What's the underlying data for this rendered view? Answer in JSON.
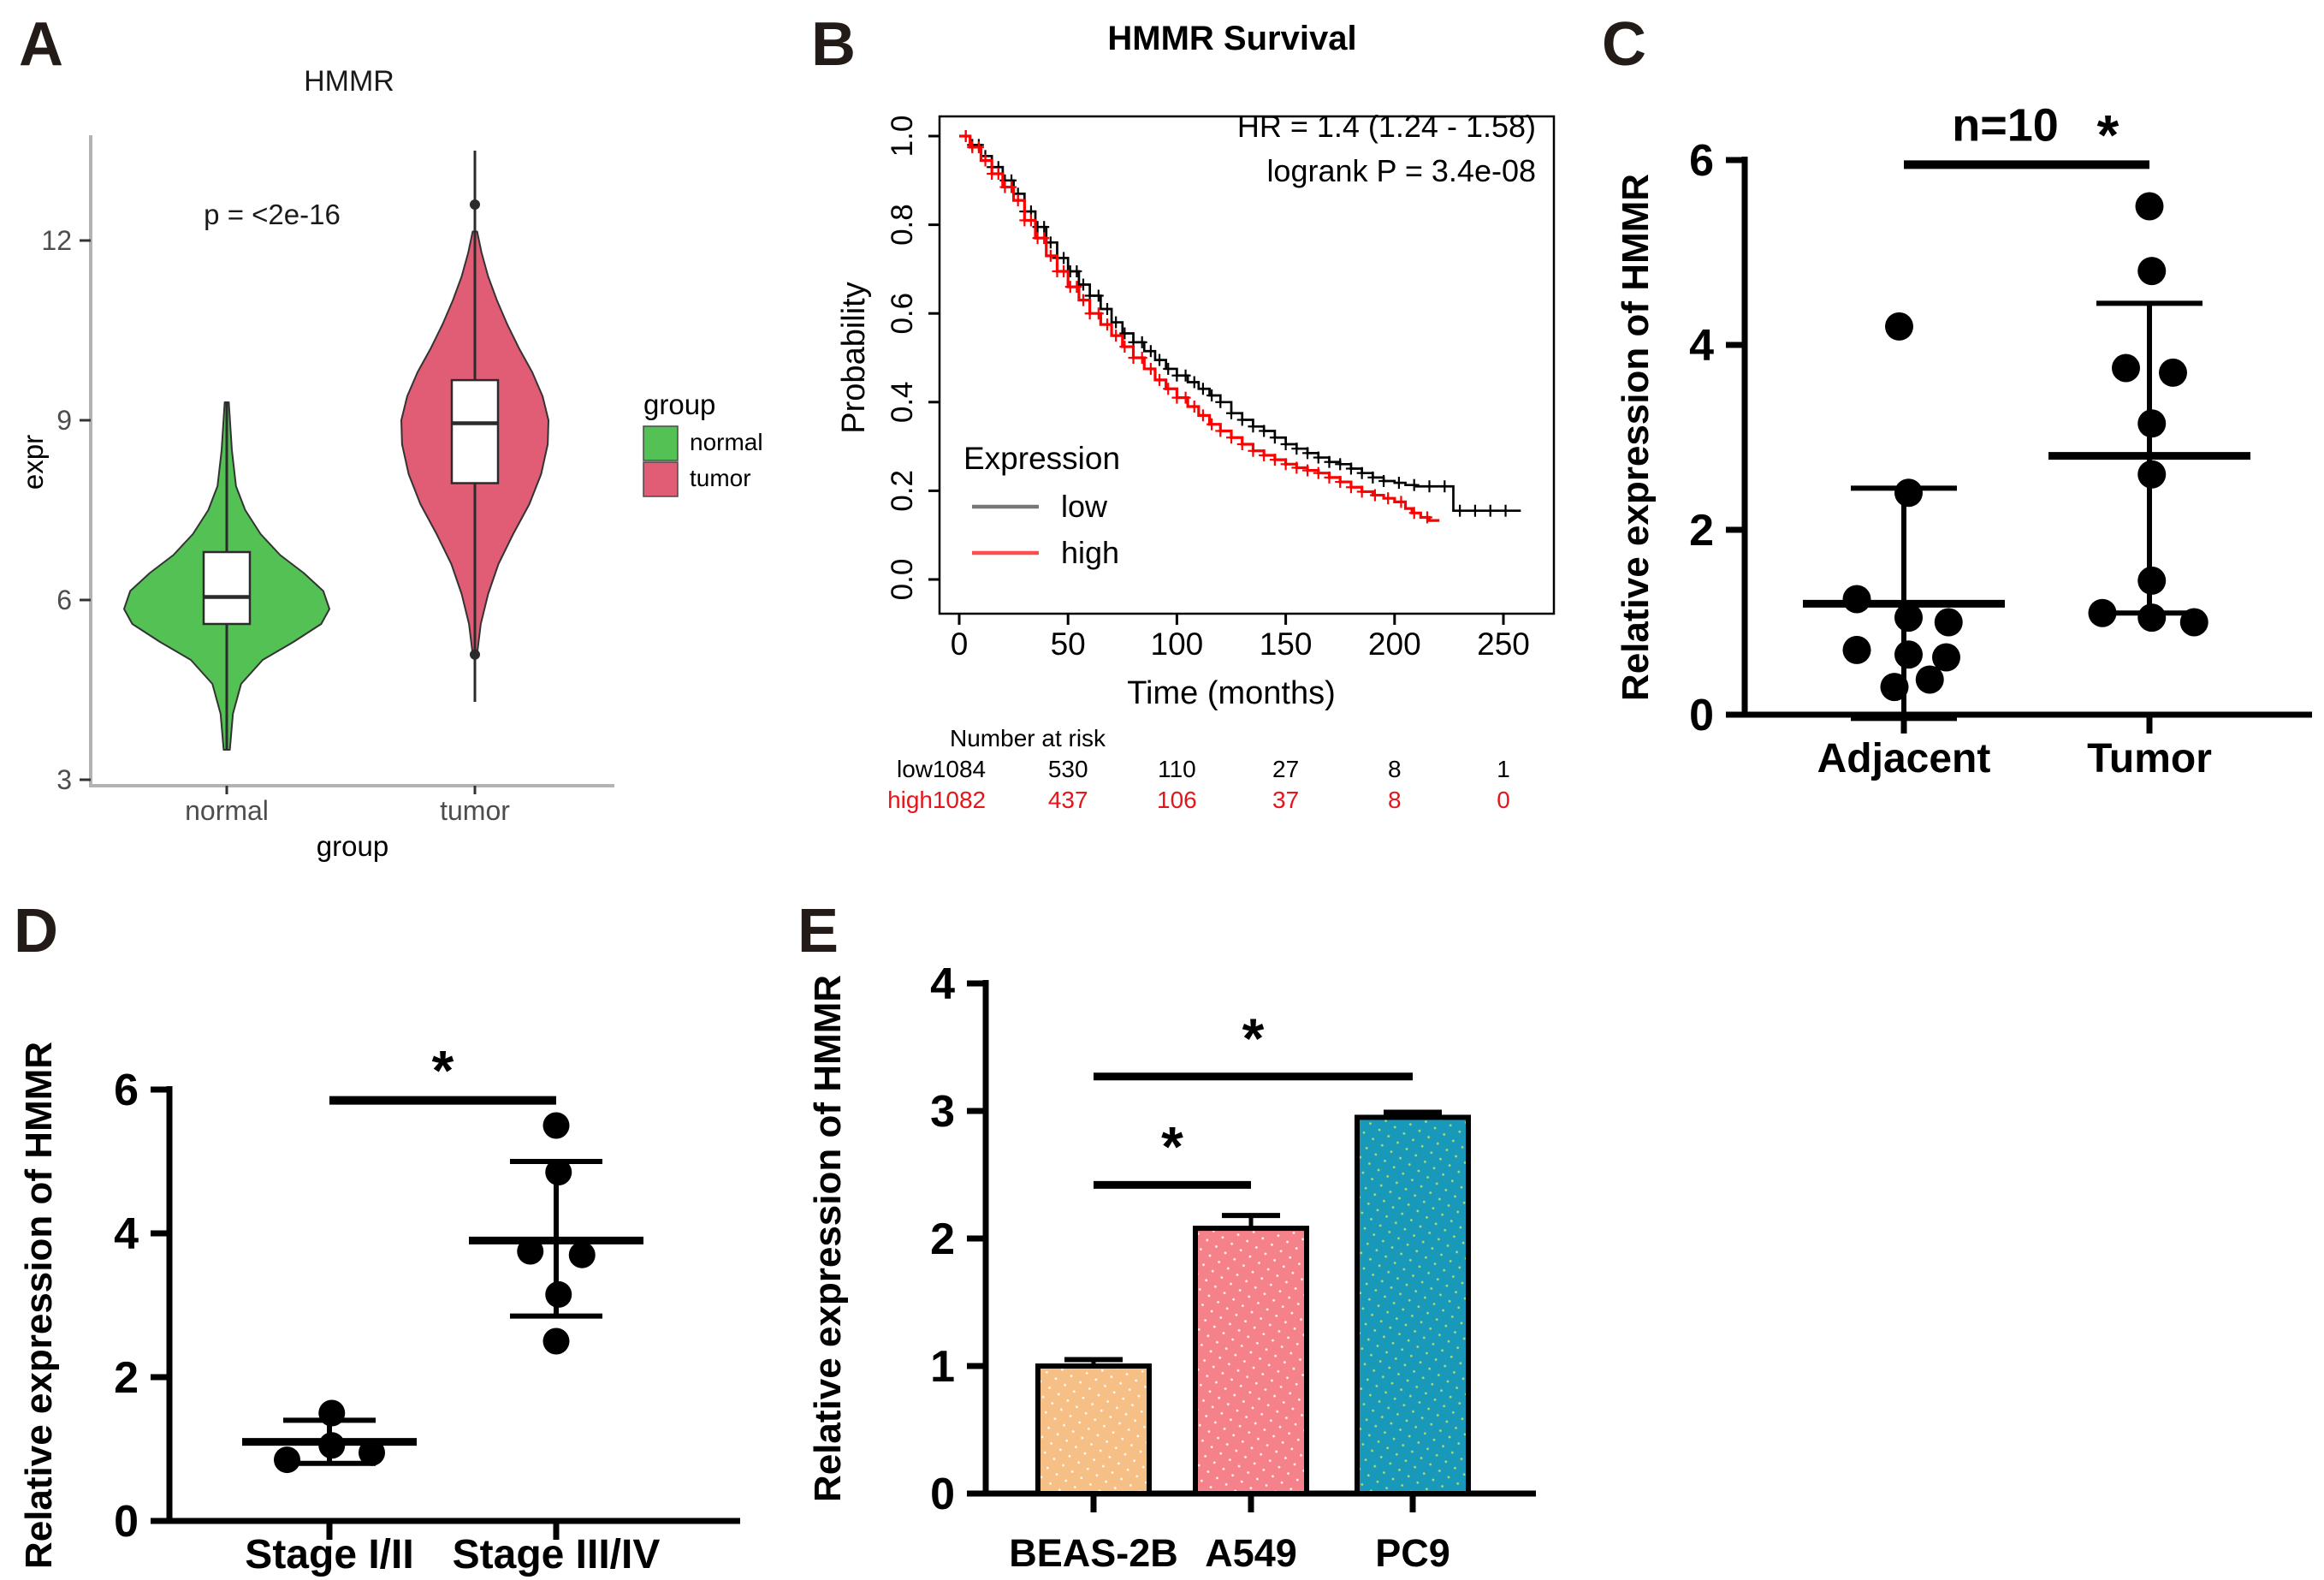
{
  "figure": {
    "background": "#FFFFFF"
  },
  "chart_data": [
    {
      "id": "A",
      "type": "violin",
      "panel_label": "A",
      "title": "HMMR",
      "p_label": "p = <2e-16",
      "xlabel": "group",
      "ylabel": "expr",
      "yticks": [
        3,
        6,
        9,
        12
      ],
      "ylim": [
        2.8,
        13.9
      ],
      "legend_title": "group",
      "groups": [
        {
          "name": "normal",
          "color": "#54C155",
          "box": {
            "q1": 5.6,
            "median": 6.05,
            "q3": 6.8
          },
          "whisker": [
            3.5,
            9.3
          ],
          "outliers": [],
          "profile": [
            [
              3.5,
              0.03
            ],
            [
              4.1,
              0.06
            ],
            [
              4.6,
              0.14
            ],
            [
              5.0,
              0.35
            ],
            [
              5.3,
              0.65
            ],
            [
              5.6,
              0.92
            ],
            [
              5.85,
              1.0
            ],
            [
              6.15,
              0.94
            ],
            [
              6.45,
              0.75
            ],
            [
              6.75,
              0.52
            ],
            [
              7.1,
              0.33
            ],
            [
              7.5,
              0.18
            ],
            [
              7.9,
              0.09
            ],
            [
              8.5,
              0.05
            ],
            [
              9.3,
              0.02
            ]
          ]
        },
        {
          "name": "tumor",
          "color": "#E15C75",
          "box": {
            "q1": 7.95,
            "median": 8.95,
            "q3": 9.67
          },
          "whisker": [
            4.3,
            13.5
          ],
          "outliers": [
            12.6,
            5.09
          ],
          "profile": [
            [
              5.1,
              0.03
            ],
            [
              5.6,
              0.08
            ],
            [
              6.1,
              0.18
            ],
            [
              6.6,
              0.32
            ],
            [
              7.1,
              0.52
            ],
            [
              7.6,
              0.74
            ],
            [
              8.1,
              0.9
            ],
            [
              8.6,
              0.99
            ],
            [
              9.0,
              1.0
            ],
            [
              9.4,
              0.92
            ],
            [
              9.8,
              0.78
            ],
            [
              10.2,
              0.6
            ],
            [
              10.6,
              0.44
            ],
            [
              11.0,
              0.3
            ],
            [
              11.4,
              0.18
            ],
            [
              11.8,
              0.09
            ],
            [
              12.15,
              0.03
            ]
          ]
        }
      ]
    },
    {
      "id": "B",
      "type": "km",
      "panel_label": "B",
      "title": "HMMR Survival",
      "hr_label": "HR = 1.4 (1.24 - 1.58)",
      "logrank_label": "logrank P = 3.4e-08",
      "xlabel": "Time (months)",
      "ylabel": "Probability",
      "xticks": [
        0,
        50,
        100,
        150,
        200,
        250
      ],
      "ytick_labels": [
        "0.0",
        "0.2",
        "0.4",
        "0.6",
        "0.8",
        "1.0"
      ],
      "xlim": [
        0,
        260
      ],
      "legend_title": "Expression",
      "series": [
        {
          "name": "low",
          "color": "#000000",
          "legend_color": "#777777",
          "points": [
            [
              0,
              1.0
            ],
            [
              5,
              0.98
            ],
            [
              10,
              0.955
            ],
            [
              15,
              0.93
            ],
            [
              20,
              0.9
            ],
            [
              25,
              0.87
            ],
            [
              30,
              0.83
            ],
            [
              35,
              0.795
            ],
            [
              40,
              0.76
            ],
            [
              45,
              0.725
            ],
            [
              50,
              0.695
            ],
            [
              55,
              0.665
            ],
            [
              60,
              0.64
            ],
            [
              65,
              0.61
            ],
            [
              70,
              0.58
            ],
            [
              75,
              0.555
            ],
            [
              80,
              0.535
            ],
            [
              85,
              0.515
            ],
            [
              90,
              0.495
            ],
            [
              95,
              0.475
            ],
            [
              100,
              0.46
            ],
            [
              105,
              0.445
            ],
            [
              110,
              0.43
            ],
            [
              115,
              0.415
            ],
            [
              120,
              0.4
            ],
            [
              125,
              0.375
            ],
            [
              130,
              0.36
            ],
            [
              135,
              0.345
            ],
            [
              140,
              0.335
            ],
            [
              145,
              0.32
            ],
            [
              150,
              0.305
            ],
            [
              155,
              0.295
            ],
            [
              160,
              0.285
            ],
            [
              165,
              0.275
            ],
            [
              170,
              0.265
            ],
            [
              175,
              0.26
            ],
            [
              180,
              0.25
            ],
            [
              185,
              0.24
            ],
            [
              190,
              0.23
            ],
            [
              195,
              0.222
            ],
            [
              200,
              0.218
            ],
            [
              205,
              0.213
            ],
            [
              210,
              0.21
            ],
            [
              225,
              0.21
            ],
            [
              227,
              0.155
            ],
            [
              258,
              0.155
            ]
          ],
          "censors": [
            {
              "from": 3,
              "to": 57,
              "step": 3
            },
            {
              "from": 60,
              "to": 120,
              "step": 4
            },
            {
              "from": 125,
              "to": 195,
              "step": 5
            },
            {
              "from": 202,
              "to": 253,
              "step": 7
            }
          ]
        },
        {
          "name": "high",
          "color": "#FF0000",
          "legend_color": "#FF4D4D",
          "points": [
            [
              0,
              1.0
            ],
            [
              5,
              0.975
            ],
            [
              10,
              0.945
            ],
            [
              15,
              0.915
            ],
            [
              20,
              0.885
            ],
            [
              25,
              0.855
            ],
            [
              30,
              0.81
            ],
            [
              35,
              0.77
            ],
            [
              40,
              0.73
            ],
            [
              45,
              0.695
            ],
            [
              50,
              0.66
            ],
            [
              55,
              0.63
            ],
            [
              60,
              0.6
            ],
            [
              65,
              0.575
            ],
            [
              70,
              0.55
            ],
            [
              75,
              0.525
            ],
            [
              80,
              0.5
            ],
            [
              85,
              0.475
            ],
            [
              90,
              0.45
            ],
            [
              95,
              0.43
            ],
            [
              100,
              0.41
            ],
            [
              105,
              0.39
            ],
            [
              110,
              0.37
            ],
            [
              115,
              0.35
            ],
            [
              120,
              0.335
            ],
            [
              125,
              0.32
            ],
            [
              130,
              0.305
            ],
            [
              135,
              0.29
            ],
            [
              140,
              0.28
            ],
            [
              145,
              0.27
            ],
            [
              150,
              0.26
            ],
            [
              155,
              0.252
            ],
            [
              160,
              0.246
            ],
            [
              165,
              0.24
            ],
            [
              170,
              0.23
            ],
            [
              175,
              0.22
            ],
            [
              180,
              0.208
            ],
            [
              185,
              0.198
            ],
            [
              190,
              0.19
            ],
            [
              195,
              0.183
            ],
            [
              200,
              0.175
            ],
            [
              205,
              0.16
            ],
            [
              208,
              0.15
            ],
            [
              212,
              0.14
            ],
            [
              216,
              0.133
            ],
            [
              220,
              0.13
            ]
          ],
          "censors": [
            {
              "from": 3,
              "to": 57,
              "step": 3
            },
            {
              "from": 60,
              "to": 120,
              "step": 4
            },
            {
              "from": 125,
              "to": 180,
              "step": 5
            },
            {
              "from": 185,
              "to": 218,
              "step": 6
            }
          ]
        }
      ],
      "risk_table": {
        "header": "Number at risk",
        "times": [
          0,
          50,
          100,
          150,
          200,
          250
        ],
        "rows": [
          {
            "name": "low",
            "color": "#000000",
            "values": [
              1084,
              530,
              110,
              27,
              8,
              1
            ]
          },
          {
            "name": "high",
            "color": "#E4161B",
            "values": [
              1082,
              437,
              106,
              37,
              8,
              0
            ]
          }
        ]
      }
    },
    {
      "id": "C",
      "type": "scatter",
      "panel_label": "C",
      "ylabel": "Relative expression of HMMR",
      "yticks": [
        0,
        2,
        4,
        6
      ],
      "ylim": [
        0,
        6.2
      ],
      "n_label": "n=10",
      "sig": {
        "star": "*",
        "value": 5.95
      },
      "categories": [
        {
          "name": "Adjacent",
          "mean": 1.2,
          "sd_high": 2.45,
          "sd_low": -0.04,
          "points": [
            [
              4.2,
              -0.1
            ],
            [
              2.4,
              0.1
            ],
            [
              1.25,
              -1.0
            ],
            [
              1.05,
              0.1
            ],
            [
              1.0,
              0.95
            ],
            [
              0.7,
              -1.0
            ],
            [
              0.65,
              0.1
            ],
            [
              0.62,
              0.9
            ],
            [
              0.38,
              0.55
            ],
            [
              0.3,
              -0.2
            ]
          ]
        },
        {
          "name": "Tumor",
          "mean": 2.8,
          "sd_high": 4.45,
          "sd_low": 1.1,
          "points": [
            [
              5.5,
              0.0
            ],
            [
              4.8,
              0.05
            ],
            [
              3.75,
              -0.5
            ],
            [
              3.7,
              0.5
            ],
            [
              3.15,
              0.05
            ],
            [
              2.6,
              0.05
            ],
            [
              1.45,
              0.05
            ],
            [
              1.1,
              -1.0
            ],
            [
              1.05,
              0.05
            ],
            [
              1.0,
              0.95
            ]
          ]
        }
      ]
    },
    {
      "id": "D",
      "type": "scatter",
      "panel_label": "D",
      "ylabel": "Relative expression of HMMR",
      "yticks": [
        0,
        2,
        4,
        6
      ],
      "ylim": [
        0,
        6.4
      ],
      "n_label": "",
      "sig": {
        "star": "*",
        "value": 5.85
      },
      "categories": [
        {
          "name": "Stage I/II",
          "mean": 1.1,
          "sd_high": 1.4,
          "sd_low": 0.8,
          "points": [
            [
              1.5,
              0.05
            ],
            [
              1.05,
              0.05
            ],
            [
              0.95,
              0.9
            ],
            [
              0.85,
              -0.9
            ]
          ]
        },
        {
          "name": "Stage III/IV",
          "mean": 3.9,
          "sd_high": 5.0,
          "sd_low": 2.85,
          "points": [
            [
              5.5,
              0.0
            ],
            [
              4.85,
              0.05
            ],
            [
              3.75,
              -0.55
            ],
            [
              3.7,
              0.55
            ],
            [
              3.15,
              0.05
            ],
            [
              2.5,
              0.0
            ]
          ]
        }
      ]
    },
    {
      "id": "E",
      "type": "bar",
      "panel_label": "E",
      "ylabel": "Relative expression of HMMR",
      "yticks": [
        0,
        1,
        2,
        3,
        4
      ],
      "ylim": [
        0,
        4
      ],
      "categories": [
        "BEAS-2B",
        "A549",
        "PC9"
      ],
      "values": [
        1.0,
        2.08,
        2.95
      ],
      "errors": [
        0.05,
        0.1,
        0.04
      ],
      "colors": [
        "#F5BF85",
        "#F5828A",
        "#1999BA"
      ],
      "dot_colors": [
        "#FFFFFF",
        "#FFFFFF",
        "#BFE36A"
      ],
      "sig_bars": [
        {
          "from": 0,
          "to": 1,
          "value": 2.42,
          "star": "*"
        },
        {
          "from": 0,
          "to": 2,
          "value": 3.27,
          "star": "*"
        }
      ]
    }
  ]
}
